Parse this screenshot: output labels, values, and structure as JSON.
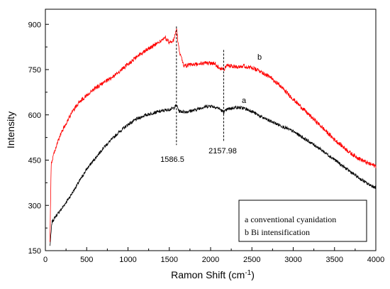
{
  "chart_data": {
    "type": "line",
    "xlabel": "Ramon Shift (cm",
    "xlabel_sup": "-1",
    "xlabel_close": ")",
    "ylabel": "Intensity",
    "xlim": [
      0,
      4000
    ],
    "ylim": [
      150,
      950
    ],
    "xticks": [
      0,
      500,
      1000,
      1500,
      2000,
      2500,
      3000,
      3500,
      4000
    ],
    "yticks": [
      150,
      300,
      450,
      600,
      750,
      900
    ],
    "grid": false,
    "series": [
      {
        "name": "a",
        "color": "#000000",
        "x": [
          55,
          80,
          120,
          200,
          300,
          400,
          500,
          600,
          700,
          800,
          900,
          1000,
          1100,
          1200,
          1300,
          1400,
          1500,
          1550,
          1586.5,
          1620,
          1700,
          1800,
          1900,
          2000,
          2100,
          2157.98,
          2200,
          2300,
          2400,
          2500,
          2600,
          2700,
          2800,
          2900,
          3000,
          3100,
          3200,
          3300,
          3400,
          3500,
          3600,
          3700,
          3800,
          3900,
          4000
        ],
        "values": [
          165,
          245,
          262,
          290,
          330,
          375,
          420,
          455,
          490,
          518,
          545,
          568,
          585,
          598,
          606,
          612,
          618,
          622,
          632,
          612,
          610,
          615,
          625,
          630,
          622,
          608,
          618,
          625,
          622,
          612,
          595,
          582,
          570,
          558,
          545,
          528,
          510,
          492,
          472,
          452,
          430,
          410,
          390,
          372,
          358
        ]
      },
      {
        "name": "b",
        "color": "#ff0000",
        "x": [
          55,
          70,
          100,
          150,
          200,
          300,
          400,
          500,
          600,
          700,
          800,
          900,
          1000,
          1100,
          1200,
          1300,
          1400,
          1450,
          1500,
          1550,
          1586.5,
          1620,
          1680,
          1750,
          1850,
          1950,
          2050,
          2100,
          2157.98,
          2200,
          2300,
          2400,
          2500,
          2600,
          2700,
          2800,
          2900,
          3000,
          3100,
          3200,
          3300,
          3400,
          3500,
          3600,
          3700,
          3800,
          3900,
          4000
        ],
        "values": [
          175,
          435,
          470,
          510,
          545,
          598,
          640,
          665,
          688,
          705,
          722,
          745,
          768,
          790,
          812,
          828,
          845,
          855,
          840,
          845,
          885,
          810,
          762,
          765,
          768,
          772,
          770,
          758,
          748,
          765,
          760,
          762,
          755,
          745,
          728,
          708,
          680,
          652,
          625,
          598,
          572,
          545,
          518,
          495,
          472,
          455,
          440,
          430
        ]
      }
    ],
    "annotations": {
      "peak1": "1586.5",
      "peak2": "2157.98",
      "label_a": "a",
      "label_b": "b"
    },
    "peak_markers": [
      1586.5,
      2157.98
    ],
    "legend": {
      "placement": "bottom-right",
      "entries": [
        "a conventional cyanidation",
        "b Bi intensification"
      ]
    }
  }
}
